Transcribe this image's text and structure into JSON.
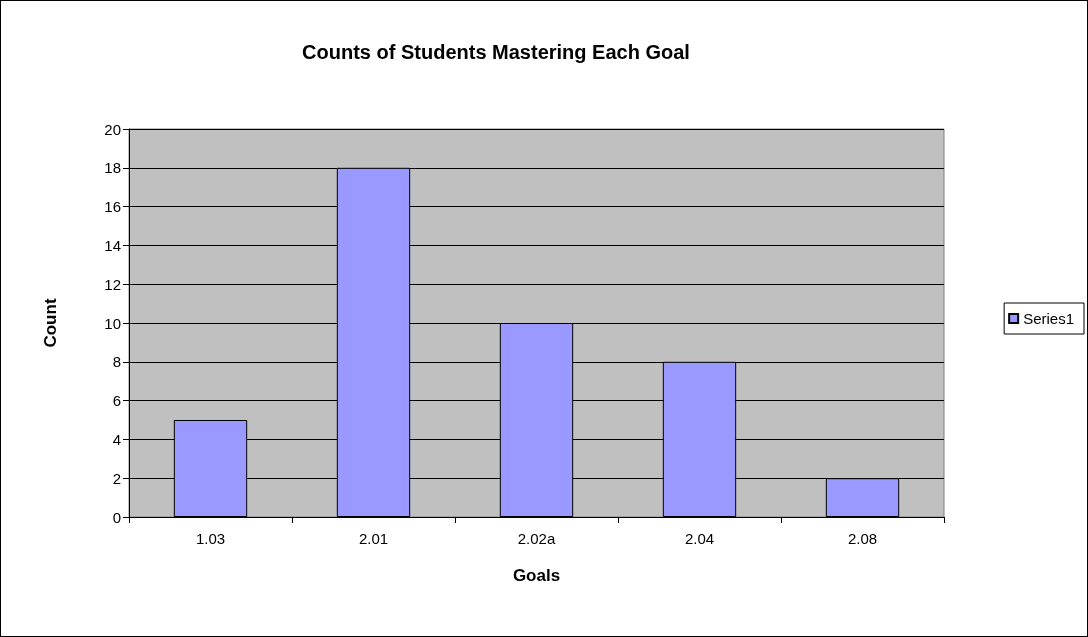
{
  "chart_data": {
    "type": "bar",
    "title": "Counts of Students Mastering Each Goal",
    "xlabel": "Goals",
    "ylabel": "Count",
    "categories": [
      "1.03",
      "2.01",
      "2.02a",
      "2.04",
      "2.08"
    ],
    "series": [
      {
        "name": "Series1",
        "color": "#9999ff",
        "values": [
          5,
          18,
          10,
          8,
          2
        ]
      }
    ],
    "ylim": [
      0,
      20
    ],
    "yticks": [
      0,
      2,
      4,
      6,
      8,
      10,
      12,
      14,
      16,
      18,
      20
    ],
    "grid": "y",
    "legend": "right"
  }
}
